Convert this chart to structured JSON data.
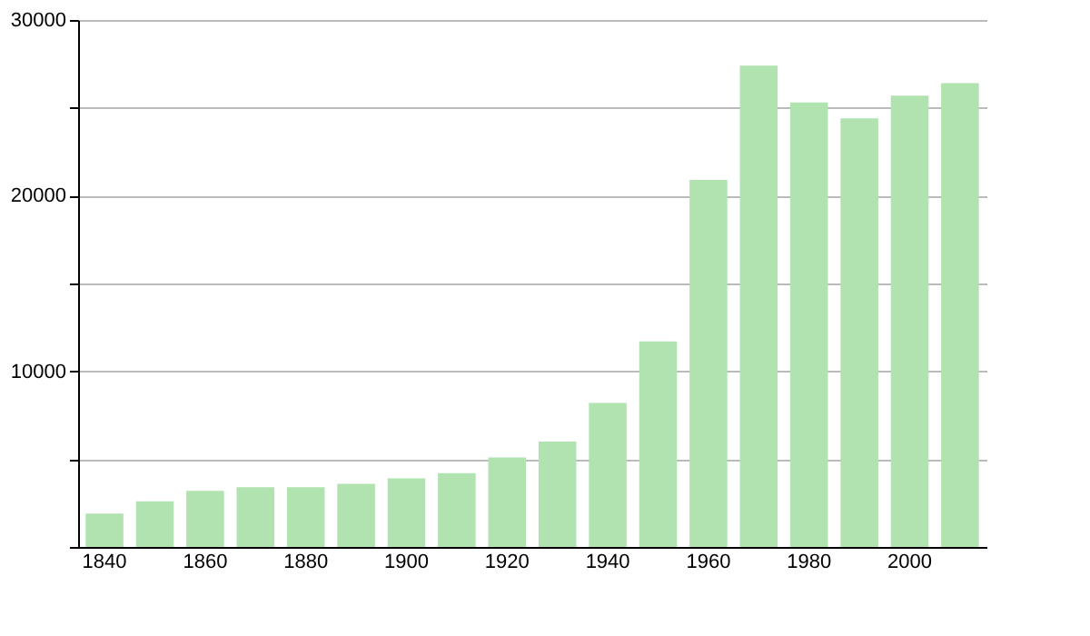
{
  "chart_data": {
    "type": "bar",
    "categories": [
      "1840",
      null,
      "1860",
      null,
      "1880",
      null,
      "1900",
      null,
      "1920",
      null,
      "1940",
      null,
      "1960",
      null,
      "1980",
      null,
      "2000",
      null
    ],
    "values": [
      1900,
      2600,
      3200,
      3400,
      3400,
      3600,
      3900,
      4200,
      5100,
      6000,
      8200,
      11700,
      20900,
      27400,
      25300,
      24400,
      25700,
      26400
    ],
    "color": "#b0e3b0",
    "ylim": [
      0,
      30000
    ],
    "yticks": [
      {
        "value": 0,
        "label": null
      },
      {
        "value": 5000,
        "label": null
      },
      10000,
      {
        "value": 15000,
        "label": null
      },
      20000,
      {
        "value": 25000,
        "label": null
      },
      30000
    ],
    "grid": "y"
  }
}
